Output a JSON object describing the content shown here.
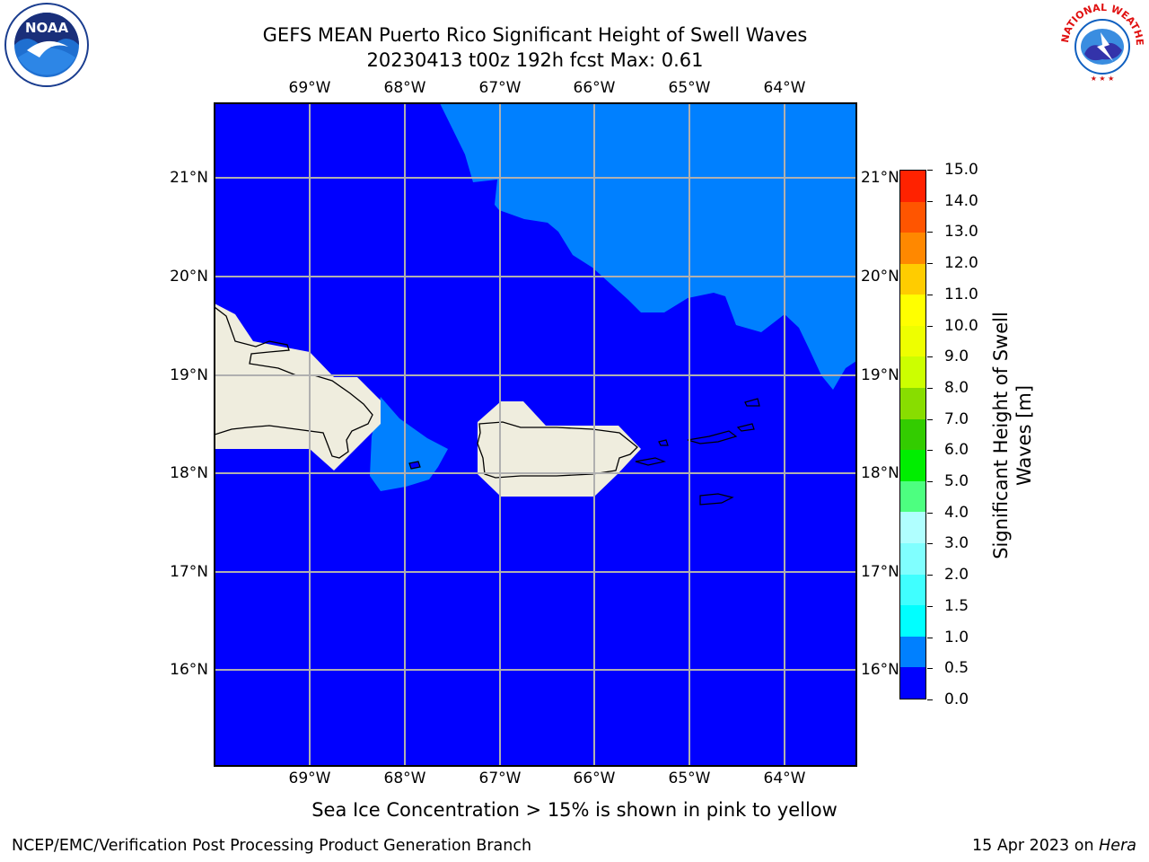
{
  "title_line1": "GEFS MEAN Puerto Rico Significant Height of Swell Waves",
  "title_line2": "20230413 t00z 192h fcst   Max: 0.61",
  "lon_labels": [
    "69°W",
    "68°W",
    "67°W",
    "66°W",
    "65°W",
    "64°W"
  ],
  "lat_labels": [
    "21°N",
    "20°N",
    "19°N",
    "18°N",
    "17°N",
    "16°N"
  ],
  "colorbar": {
    "title_line1": "Significant Height of Swell",
    "title_line2": "Waves [m]",
    "ticks": [
      "0.0",
      "0.5",
      "1.0",
      "1.5",
      "2.0",
      "3.0",
      "4.0",
      "5.0",
      "6.0",
      "7.0",
      "8.0",
      "9.0",
      "10.0",
      "11.0",
      "12.0",
      "13.0",
      "14.0",
      "15.0"
    ],
    "colors": [
      "#0000ff",
      "#0080ff",
      "#00ffff",
      "#40ffff",
      "#80ffff",
      "#b0ffff",
      "#4dff80",
      "#00ee00",
      "#33cc00",
      "#88dd00",
      "#ccff00",
      "#eeff00",
      "#ffff00",
      "#ffcc00",
      "#ff8800",
      "#ff5500",
      "#ff2200",
      "#ff0000"
    ]
  },
  "map_colors": {
    "ocean": "#0000ff",
    "swell_band": "#0080ff",
    "land": "#efedde",
    "grid": "#b0b0b0"
  },
  "ice_note": "Sea Ice Concentration > 15% is shown in pink to yellow",
  "footer_left": "NCEP/EMC/Verification Post Processing Product Generation Branch",
  "footer_date": "15 Apr 2023 on",
  "footer_machine": "Hera",
  "logos": {
    "left": "noaa-logo",
    "right": "national-weather-service-logo"
  }
}
